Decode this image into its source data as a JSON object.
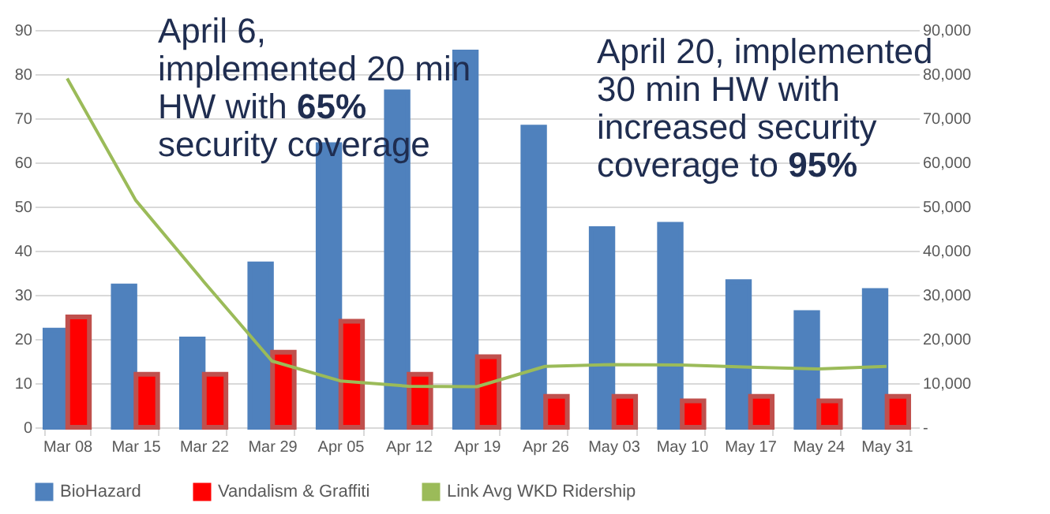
{
  "chart_data": {
    "type": "bar",
    "categories": [
      "Mar 08",
      "Mar 15",
      "Mar 22",
      "Mar 29",
      "Apr 05",
      "Apr 12",
      "Apr 19",
      "Apr 26",
      "May 03",
      "May 10",
      "May 17",
      "May 24",
      "May 31"
    ],
    "series": [
      {
        "name": "BioHazard",
        "color": "#4f81bd",
        "values": [
          22,
          32,
          20,
          37,
          64,
          76,
          85,
          68,
          45,
          46,
          33,
          26,
          31
        ]
      },
      {
        "name": "Vandalism & Graffiti",
        "color": "#ff0000",
        "values": [
          25,
          12,
          12,
          17,
          24,
          12,
          16,
          7,
          7,
          6,
          7,
          6,
          7
        ]
      },
      {
        "name": "Link Avg WKD Ridership",
        "type": "line",
        "axis": "y2",
        "color": "#9bbb59",
        "values": [
          79000,
          51500,
          33000,
          15000,
          10500,
          9300,
          9200,
          13800,
          14200,
          14100,
          13600,
          13200,
          13800
        ]
      }
    ],
    "ylim": [
      0,
      90
    ],
    "yticks": [
      0,
      10,
      20,
      30,
      40,
      50,
      60,
      70,
      80,
      90
    ],
    "y2lim": [
      0,
      90000
    ],
    "y2ticks": [
      {
        "value": 0,
        "label": "-"
      },
      {
        "value": 10000,
        "label": "10,000"
      },
      {
        "value": 20000,
        "label": "20,000"
      },
      {
        "value": 30000,
        "label": "30,000"
      },
      {
        "value": 40000,
        "label": "40,000"
      },
      {
        "value": 50000,
        "label": "50,000"
      },
      {
        "value": 60000,
        "label": "60,000"
      },
      {
        "value": 70000,
        "label": "70,000"
      },
      {
        "value": 80000,
        "label": "80,000"
      },
      {
        "value": 90000,
        "label": "90,000"
      }
    ],
    "line_style": "solid",
    "grid": "y",
    "legend": "bottom",
    "annotations": [
      "April 6, implemented 20 min HW with 65% security coverage",
      "April 20, implemented 30 min HW with increased security coverage to 95%"
    ]
  }
}
